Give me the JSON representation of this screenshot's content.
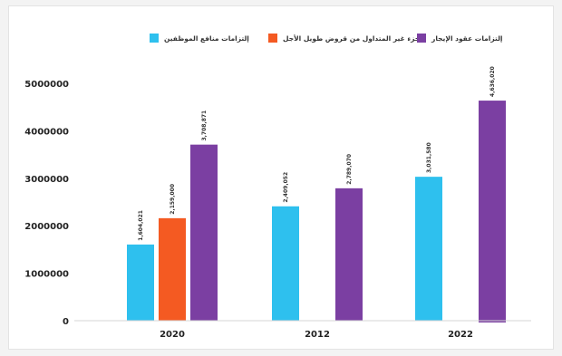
{
  "chart_data": {
    "type": "bar",
    "categories": [
      "2020",
      "2012",
      "2022"
    ],
    "series": [
      {
        "name": "إلتزامات منافع الموظفين",
        "color": "#2ec0ee",
        "values": [
          1604021,
          2409052,
          3031580
        ],
        "labels": [
          "1,604,021",
          "2,409,052",
          "3,031,580"
        ]
      },
      {
        "name": "الجزء غير المتداول من قروض طويل الأجل",
        "color": "#f45a22",
        "values": [
          2159000,
          null,
          null
        ],
        "labels": [
          "2,159,000",
          "",
          ""
        ]
      },
      {
        "name": "إلتزامات عقود الإيجار",
        "color": "#7b3fa2",
        "values": [
          3708871,
          2789070,
          4636020
        ],
        "labels": [
          "3,708,871",
          "2,789,070",
          "4,636,020"
        ]
      }
    ],
    "yticks": [
      "0",
      "1000000",
      "2000000",
      "3000000",
      "4000000",
      "5000000"
    ],
    "ylim": [
      0,
      5000000
    ],
    "legend_position": "top",
    "grid": false
  }
}
